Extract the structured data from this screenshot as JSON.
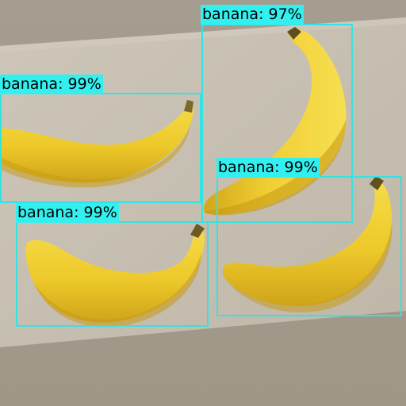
{
  "detections": [
    {
      "class_label": "banana",
      "score": "97%",
      "text": "banana: 97%"
    },
    {
      "class_label": "banana",
      "score": "99%",
      "text": "banana: 99%"
    },
    {
      "class_label": "banana",
      "score": "99%",
      "text": "banana: 99%"
    },
    {
      "class_label": "banana",
      "score": "99%",
      "text": "banana: 99%"
    }
  ],
  "colors": {
    "box_outline": "#33e3e3",
    "label_background": "#33f0f0",
    "label_text": "#000000",
    "banana_yellow": "#efcb2a",
    "cardboard": "#c7bfb1",
    "floor": "#a39a8b"
  }
}
